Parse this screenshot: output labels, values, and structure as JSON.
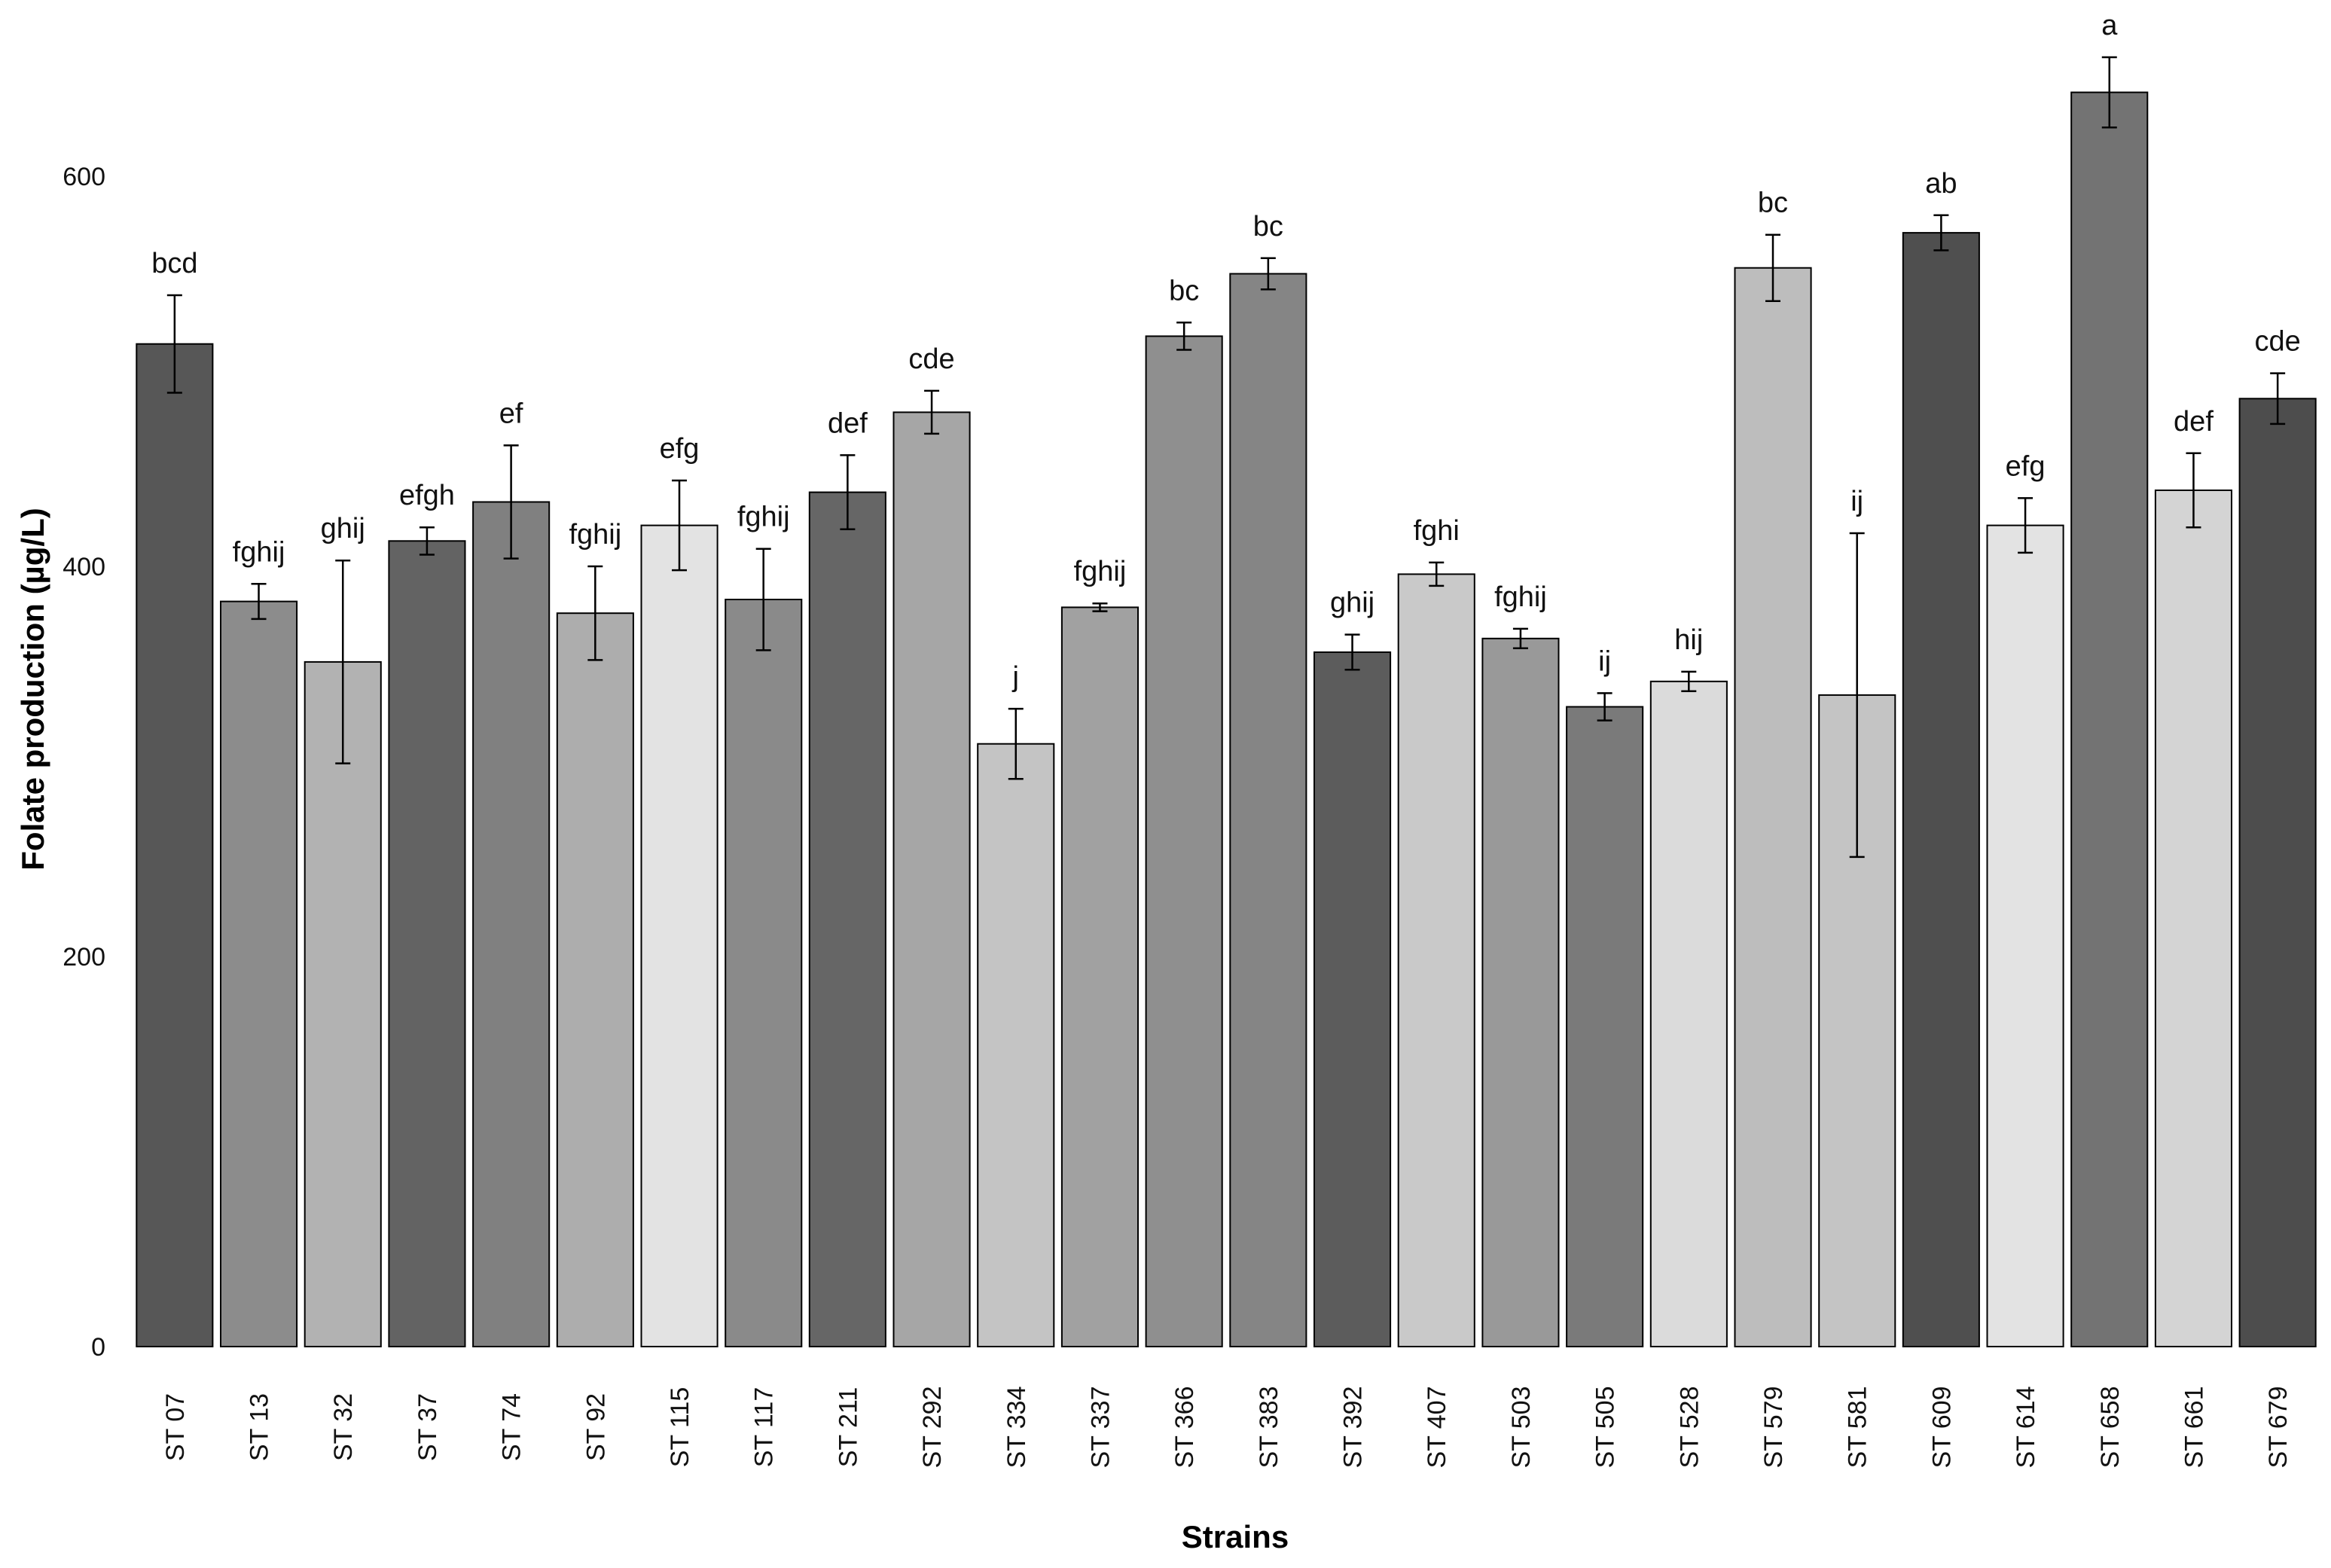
{
  "chart_data": {
    "type": "bar",
    "xlabel": "Strains",
    "ylabel": "Folate production (µg/L)",
    "ylim": [
      0,
      640
    ],
    "yticks": [
      0,
      200,
      400,
      600
    ],
    "grid": false,
    "legend": "none",
    "error_bars": true,
    "categories": [
      "ST 07",
      "ST 13",
      "ST 32",
      "ST 37",
      "ST 74",
      "ST 92",
      "ST 115",
      "ST 117",
      "ST 211",
      "ST 292",
      "ST 334",
      "ST 337",
      "ST 366",
      "ST 383",
      "ST 392",
      "ST 407",
      "ST 503",
      "ST 505",
      "ST 528",
      "ST 579",
      "ST 581",
      "ST 609",
      "ST 614",
      "ST 658",
      "ST 661",
      "ST 679"
    ],
    "values": [
      514,
      382,
      351,
      413,
      433,
      376,
      421,
      383,
      438,
      479,
      309,
      379,
      518,
      550,
      356,
      396,
      363,
      328,
      341,
      553,
      334,
      571,
      421,
      643,
      439,
      486
    ],
    "errors": [
      25,
      9,
      52,
      7,
      29,
      24,
      23,
      26,
      19,
      11,
      18,
      2,
      7,
      8,
      9,
      6,
      5,
      7,
      5,
      17,
      83,
      9,
      14,
      18,
      19,
      13
    ],
    "letters": [
      "bcd",
      "fghij",
      "ghij",
      "efgh",
      "ef",
      "fghij",
      "efg",
      "fghij",
      "def",
      "cde",
      "j",
      "fghij",
      "bc",
      "bc",
      "ghij",
      "fghi",
      "fghij",
      "ij",
      "hij",
      "bc",
      "ij",
      "ab",
      "efg",
      "a",
      "def",
      "cde"
    ],
    "colors": [
      "#575757",
      "#8c8c8c",
      "#b2b2b2",
      "#636363",
      "#808080",
      "#adadad",
      "#e3e3e3",
      "#8a8a8a",
      "#666666",
      "#a6a6a6",
      "#c4c4c4",
      "#a1a1a1",
      "#8f8f8f",
      "#858585",
      "#5c5c5c",
      "#c9c9c9",
      "#999999",
      "#7a7a7a",
      "#dbdbdb",
      "#bdbdbd",
      "#c4c4c4",
      "#4f4f4f",
      "#e3e3e3",
      "#737373",
      "#d4d4d4",
      "#4d4d4d"
    ]
  }
}
